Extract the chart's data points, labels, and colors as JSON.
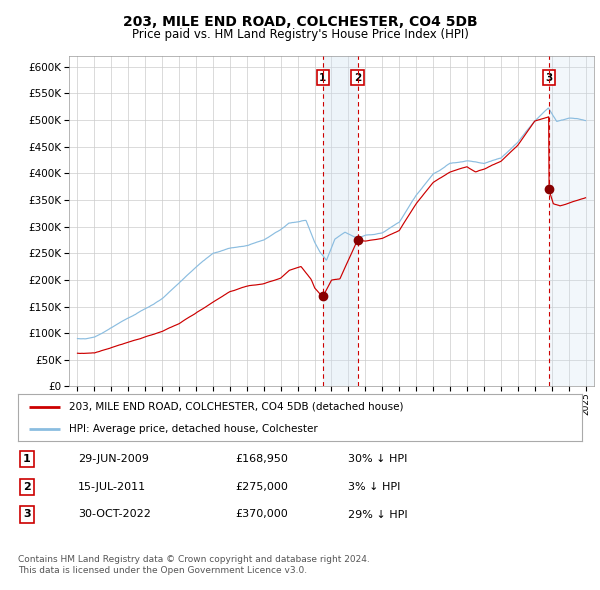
{
  "title": "203, MILE END ROAD, COLCHESTER, CO4 5DB",
  "subtitle": "Price paid vs. HM Land Registry's House Price Index (HPI)",
  "footer1": "Contains HM Land Registry data © Crown copyright and database right 2024.",
  "footer2": "This data is licensed under the Open Government Licence v3.0.",
  "legend1": "203, MILE END ROAD, COLCHESTER, CO4 5DB (detached house)",
  "legend2": "HPI: Average price, detached house, Colchester",
  "table": [
    [
      "1",
      "29-JUN-2009",
      "£168,950",
      "30% ↓ HPI"
    ],
    [
      "2",
      "15-JUL-2011",
      "£275,000",
      "3% ↓ HPI"
    ],
    [
      "3",
      "30-OCT-2022",
      "£370,000",
      "29% ↓ HPI"
    ]
  ],
  "sale_dates": [
    2009.49,
    2011.54,
    2022.83
  ],
  "sale_prices": [
    168950,
    275000,
    370000
  ],
  "hpi_color": "#8bbde0",
  "price_color": "#cc0000",
  "marker_color": "#880000",
  "shade_color": "#cde0f0",
  "grid_color": "#cccccc",
  "ylim": [
    0,
    620000
  ],
  "xlim_start": 1994.5,
  "xlim_end": 2025.5,
  "background": "#ffffff"
}
